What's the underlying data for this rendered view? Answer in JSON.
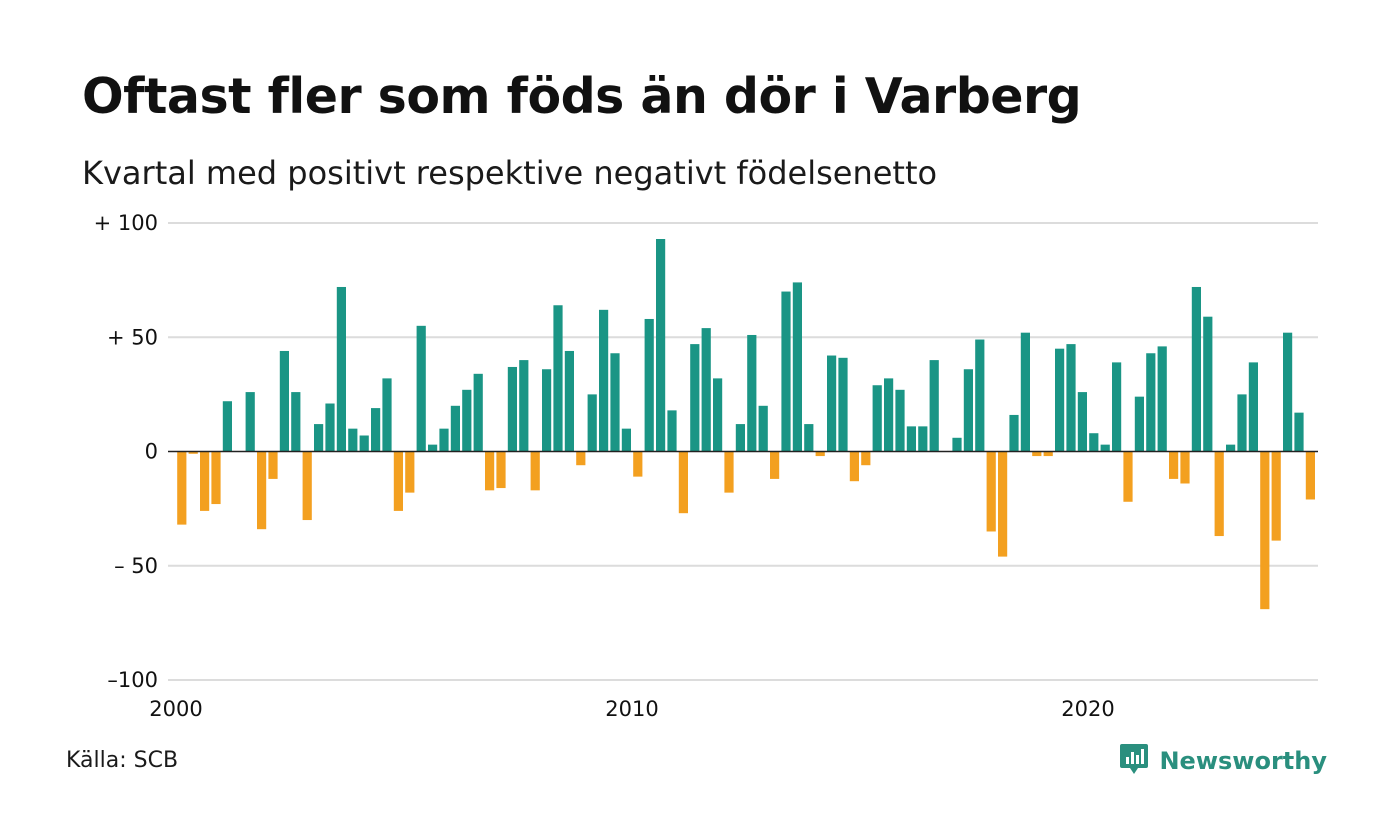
{
  "title": "Oftast fler som föds än dör i Varberg",
  "subtitle": "Kvartal med positivt respektive negativt födelsenetto",
  "source": "Källa: SCB",
  "brand": "Newsworthy",
  "colors": {
    "positive": "#1a9585",
    "negative": "#f3a020",
    "grid": "#dcdcdc",
    "brand": "#2a8f7e"
  },
  "icons": {
    "brand_logo": "newsworthy-logo-icon"
  },
  "chart_data": {
    "type": "bar",
    "title": "Oftast fler som föds än dör i Varberg",
    "subtitle": "Kvartal med positivt respektive negativt födelsenetto",
    "xlabel": "",
    "ylabel": "",
    "ylim": [
      -100,
      100
    ],
    "yticks": [
      {
        "value": 100,
        "label": "+ 100"
      },
      {
        "value": 50,
        "label": "+  50"
      },
      {
        "value": 0,
        "label": "0"
      },
      {
        "value": -50,
        "label": "– 50"
      },
      {
        "value": -100,
        "label": "–100"
      }
    ],
    "xticks": [
      {
        "value": 2000,
        "label": "2000"
      },
      {
        "value": 2010,
        "label": "2010"
      },
      {
        "value": 2020,
        "label": "2020"
      }
    ],
    "grid": true,
    "start_year": 2000,
    "periods_per_year": 4,
    "values": [
      -32,
      -1,
      -26,
      -23,
      22,
      0,
      26,
      -34,
      -12,
      44,
      26,
      -30,
      12,
      21,
      72,
      10,
      7,
      19,
      32,
      -26,
      -18,
      55,
      3,
      10,
      20,
      27,
      34,
      -17,
      -16,
      37,
      40,
      -17,
      36,
      64,
      44,
      -6,
      25,
      62,
      43,
      10,
      -11,
      58,
      93,
      18,
      -27,
      47,
      54,
      32,
      -18,
      12,
      51,
      20,
      -12,
      70,
      74,
      12,
      -2,
      42,
      41,
      -13,
      -6,
      29,
      32,
      27,
      11,
      11,
      40,
      0,
      6,
      36,
      49,
      -35,
      -46,
      16,
      52,
      -2,
      -2,
      45,
      47,
      26,
      8,
      3,
      39,
      -22,
      24,
      43,
      46,
      -12,
      -14,
      72,
      59,
      -37,
      3,
      25,
      39,
      -69,
      -39,
      52,
      17,
      -21
    ]
  }
}
